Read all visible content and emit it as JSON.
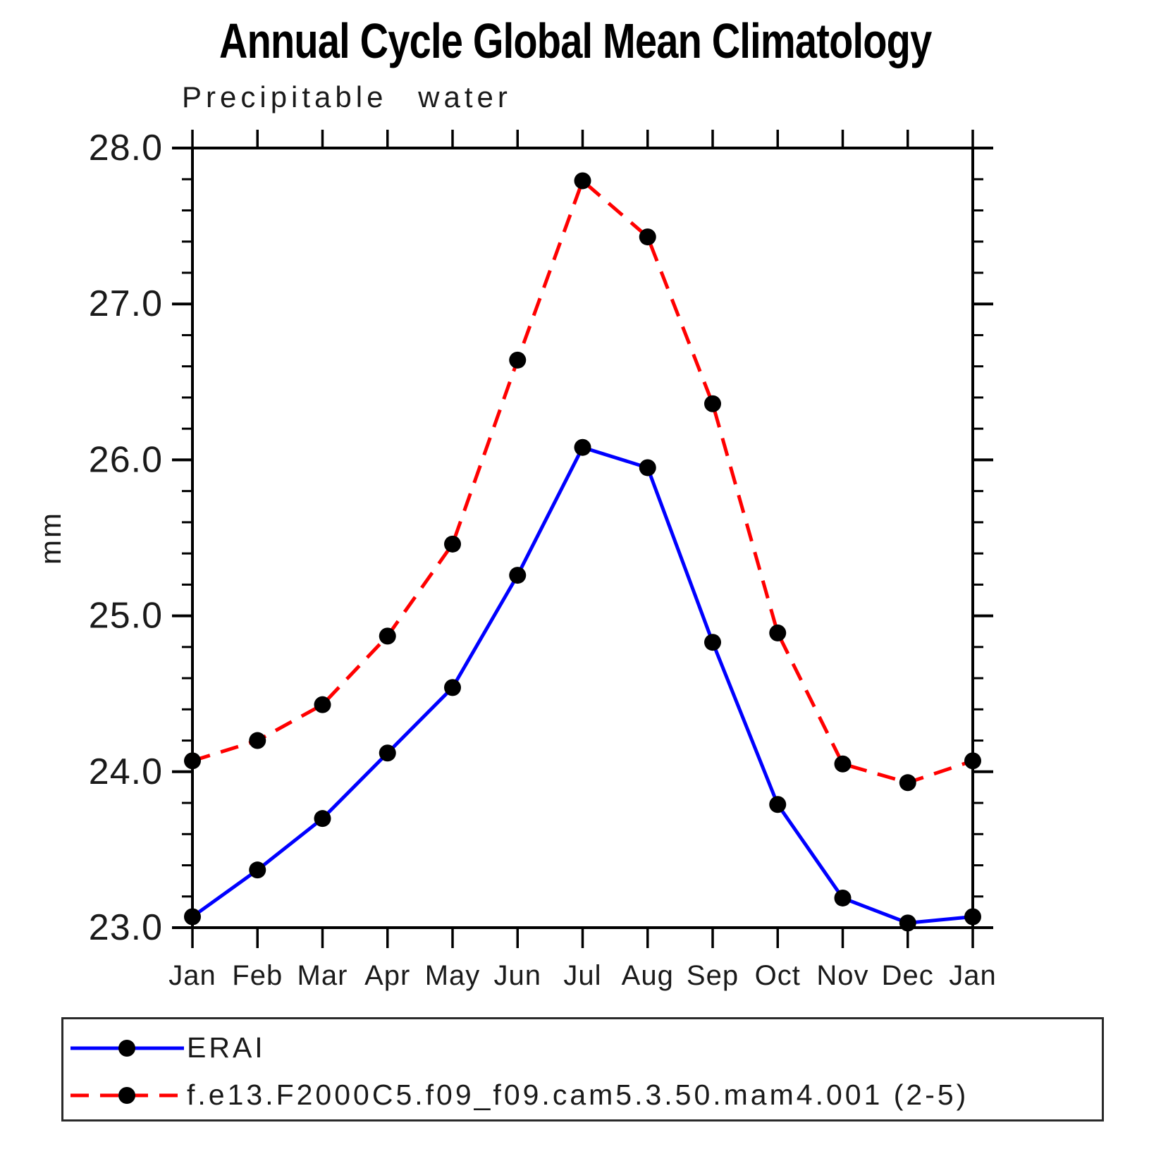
{
  "title": "Annual Cycle Global Mean Climatology",
  "subtitle": "Precipitable water",
  "y_axis_label": "mm",
  "colors": {
    "background": "#ffffff",
    "axis": "#000000",
    "text": "#1a1a1a",
    "marker": "#000000",
    "erai_line": "#0000ff",
    "model_line": "#ff0000"
  },
  "chart_data": {
    "type": "line",
    "title": "Annual Cycle Global Mean Climatology",
    "subtitle": "Precipitable water",
    "xlabel": "",
    "ylabel": "mm",
    "categories": [
      "Jan",
      "Feb",
      "Mar",
      "Apr",
      "May",
      "Jun",
      "Jul",
      "Aug",
      "Sep",
      "Oct",
      "Nov",
      "Dec",
      "Jan"
    ],
    "ylim": [
      23.0,
      28.0
    ],
    "ytick_step": 1.0,
    "yminor_step": 0.2,
    "ytick_labels": [
      "23.0",
      "24.0",
      "25.0",
      "26.0",
      "27.0",
      "28.0"
    ],
    "grid": false,
    "legend_position": "bottom",
    "series": [
      {
        "name": "ERAI",
        "color": "#0000ff",
        "line_style": "solid",
        "marker": "circle",
        "marker_color": "#000000",
        "values": [
          23.07,
          23.37,
          23.7,
          24.12,
          24.54,
          25.26,
          26.08,
          25.95,
          24.83,
          23.79,
          23.19,
          23.03,
          23.07
        ]
      },
      {
        "name": "f.e13.F2000C5.f09_f09.cam5.3.50.mam4.001 (2-5)",
        "color": "#ff0000",
        "line_style": "dashed",
        "marker": "circle",
        "marker_color": "#000000",
        "values": [
          24.07,
          24.2,
          24.43,
          24.87,
          25.46,
          26.64,
          27.79,
          27.43,
          26.36,
          24.89,
          24.05,
          23.93,
          24.07
        ]
      }
    ]
  }
}
